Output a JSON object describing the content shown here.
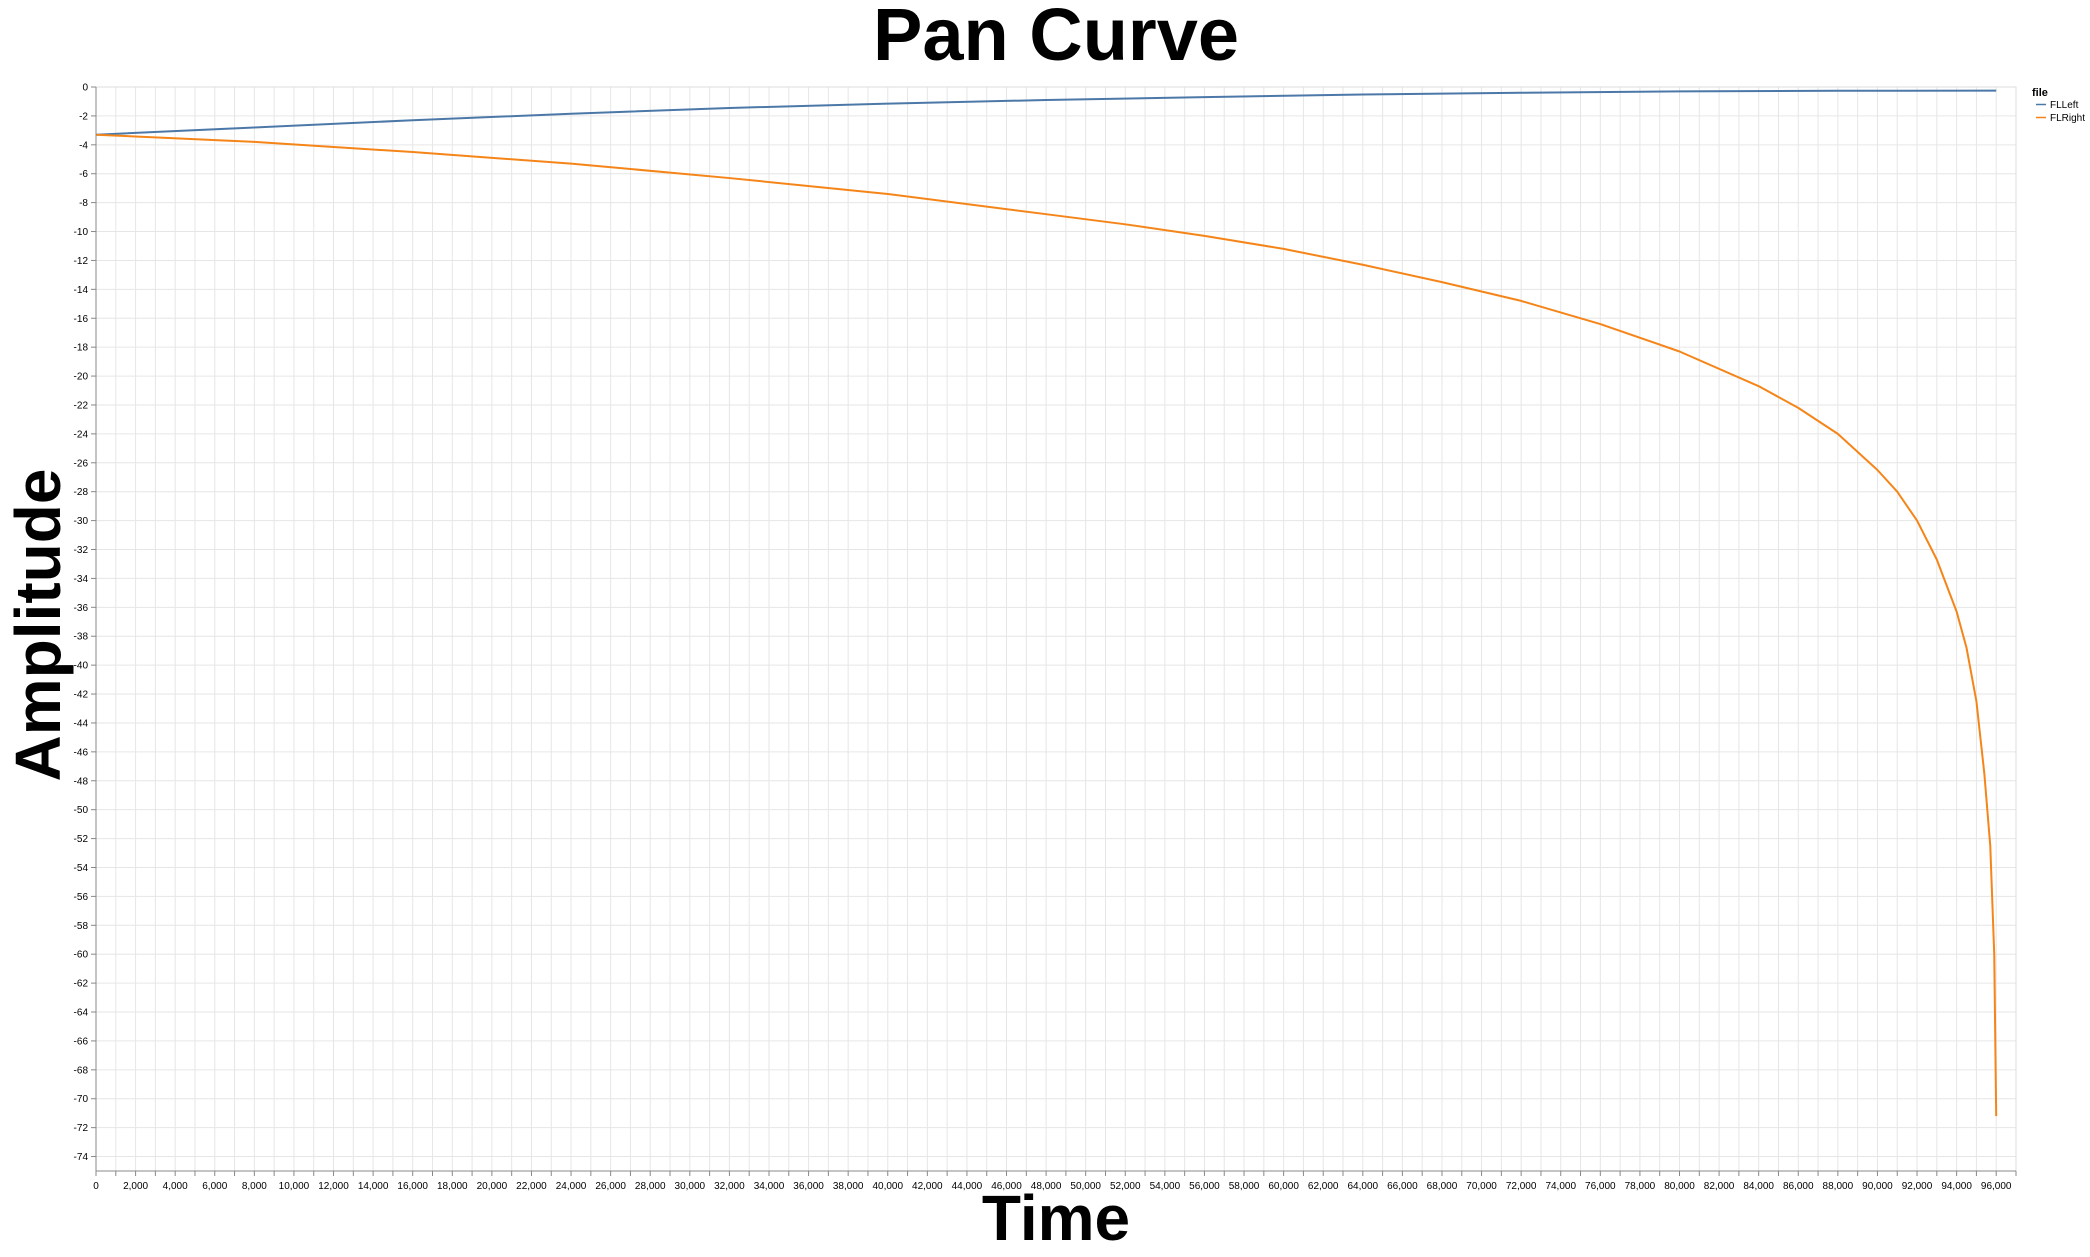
{
  "chart_data": {
    "type": "line",
    "title": "Pan Curve",
    "xlabel": "Time",
    "ylabel": "Amplitude",
    "xlim": [
      0,
      97000
    ],
    "ylim": [
      -75,
      0
    ],
    "x_tick_step": 1000,
    "x_label_step": 2000,
    "y_tick_step": 2,
    "grid": true,
    "legend": {
      "title": "file",
      "placement": "top-right"
    },
    "x_ticks": [
      "0",
      "2,000",
      "4,000",
      "6,000",
      "8,000",
      "10,000",
      "12,000",
      "14,000",
      "16,000",
      "18,000",
      "20,000",
      "22,000",
      "24,000",
      "26,000",
      "28,000",
      "30,000",
      "32,000",
      "34,000",
      "36,000",
      "38,000",
      "40,000",
      "42,000",
      "44,000",
      "46,000",
      "48,000",
      "50,000",
      "52,000",
      "54,000",
      "56,000",
      "58,000",
      "60,000",
      "62,000",
      "64,000",
      "66,000",
      "68,000",
      "70,000",
      "72,000",
      "74,000",
      "76,000",
      "78,000",
      "80,000",
      "82,000",
      "84,000",
      "86,000",
      "88,000",
      "90,000",
      "92,000",
      "94,000",
      "96,000"
    ],
    "y_ticks": [
      "0",
      "-2",
      "-4",
      "-6",
      "-8",
      "-10",
      "-12",
      "-14",
      "-16",
      "-18",
      "-20",
      "-22",
      "-24",
      "-26",
      "-28",
      "-30",
      "-32",
      "-34",
      "-36",
      "-38",
      "-40",
      "-42",
      "-44",
      "-46",
      "-48",
      "-50",
      "-52",
      "-54",
      "-56",
      "-58",
      "-60",
      "-62",
      "-64",
      "-66",
      "-68",
      "-70",
      "-72",
      "-74"
    ],
    "series": [
      {
        "name": "FLLeft",
        "color": "#4c78a8",
        "x": [
          0,
          8000,
          16000,
          24000,
          32000,
          40000,
          48000,
          56000,
          64000,
          72000,
          80000,
          88000,
          96000
        ],
        "y": [
          -3.3,
          -2.8,
          -2.3,
          -1.85,
          -1.45,
          -1.15,
          -0.9,
          -0.7,
          -0.52,
          -0.4,
          -0.3,
          -0.26,
          -0.25
        ]
      },
      {
        "name": "FLRight",
        "color": "#f58518",
        "x": [
          0,
          8000,
          16000,
          24000,
          32000,
          40000,
          48000,
          52000,
          56000,
          60000,
          64000,
          68000,
          72000,
          76000,
          80000,
          84000,
          86000,
          88000,
          90000,
          91000,
          92000,
          93000,
          94000,
          94500,
          95000,
          95400,
          95700,
          95900,
          96000
        ],
        "y": [
          -3.3,
          -3.8,
          -4.5,
          -5.3,
          -6.3,
          -7.4,
          -8.8,
          -9.5,
          -10.3,
          -11.2,
          -12.3,
          -13.5,
          -14.8,
          -16.4,
          -18.3,
          -20.7,
          -22.2,
          -24.0,
          -26.5,
          -28.0,
          -30.0,
          -32.7,
          -36.3,
          -38.8,
          -42.5,
          -47.5,
          -52.5,
          -60.0,
          -71.2
        ]
      }
    ]
  }
}
